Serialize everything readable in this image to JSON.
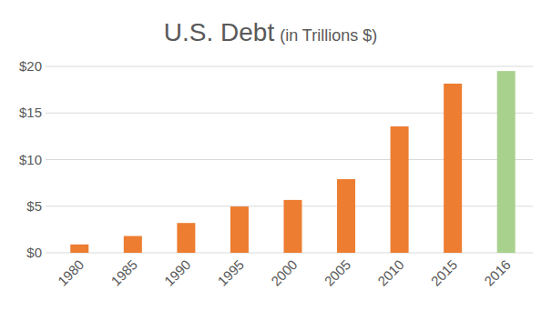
{
  "chart_data": {
    "type": "bar",
    "title": "U.S. Debt",
    "subtitle": "(in Trillions $)",
    "categories": [
      "1980",
      "1985",
      "1990",
      "1995",
      "2000",
      "2005",
      "2010",
      "2015",
      "2016"
    ],
    "values": [
      0.9,
      1.8,
      3.2,
      4.97,
      5.67,
      7.9,
      13.56,
      18.15,
      19.5
    ],
    "colors": [
      "#ed7d31",
      "#ed7d31",
      "#ed7d31",
      "#ed7d31",
      "#ed7d31",
      "#ed7d31",
      "#ed7d31",
      "#ed7d31",
      "#a9d18e"
    ],
    "ylim": [
      0,
      20
    ],
    "yticks": [
      {
        "value": 0,
        "label": "$0"
      },
      {
        "value": 5,
        "label": "$5"
      },
      {
        "value": 10,
        "label": "$10"
      },
      {
        "value": 15,
        "label": "$15"
      },
      {
        "value": 20,
        "label": "$20"
      }
    ],
    "grid": true
  }
}
